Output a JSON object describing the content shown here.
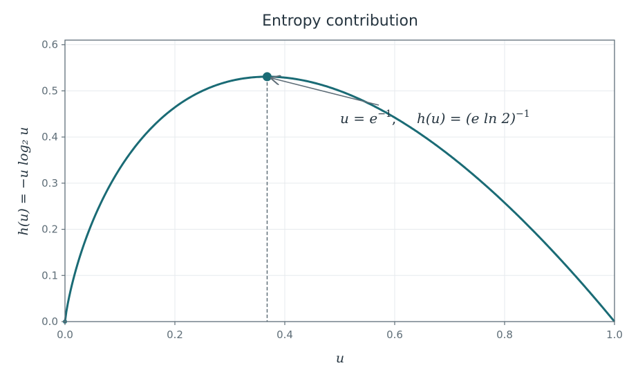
{
  "chart_data": {
    "type": "line",
    "title": "Entropy contribution",
    "xlabel": "u",
    "ylabel": "h(u) = −u log₂ u",
    "xlim": [
      0.0,
      1.0
    ],
    "ylim": [
      0.0,
      0.61
    ],
    "x_ticks": [
      "0.0",
      "0.2",
      "0.4",
      "0.6",
      "0.8",
      "1.0"
    ],
    "y_ticks": [
      "0.0",
      "0.1",
      "0.2",
      "0.3",
      "0.4",
      "0.5",
      "0.6"
    ],
    "grid": true,
    "series": [
      {
        "function": "-u*log2(u)",
        "color": "#1a6b75",
        "x": [
          0.0,
          0.01,
          0.02,
          0.05,
          0.1,
          0.15,
          0.2,
          0.25,
          0.3,
          0.3679,
          0.4,
          0.45,
          0.5,
          0.55,
          0.6,
          0.65,
          0.7,
          0.75,
          0.8,
          0.85,
          0.9,
          0.95,
          1.0
        ],
        "y": [
          0.0,
          0.0664,
          0.1129,
          0.2161,
          0.3322,
          0.4105,
          0.4644,
          0.5,
          0.5211,
          0.5307,
          0.5288,
          0.5184,
          0.5,
          0.4744,
          0.4422,
          0.404,
          0.3602,
          0.3113,
          0.2575,
          0.1993,
          0.1368,
          0.0703,
          0.0
        ]
      }
    ],
    "max_point": {
      "x": 0.3679,
      "y": 0.5307,
      "color": "#1a6b75"
    },
    "annotation": {
      "part1": "u = e",
      "part1_sup": "−1",
      "part1_end": ",",
      "part2": "h(u) = (e ln 2)",
      "part2_sup": "−1",
      "arrow_color": "#5f6e78"
    },
    "frame_color": "#5f6e78"
  }
}
